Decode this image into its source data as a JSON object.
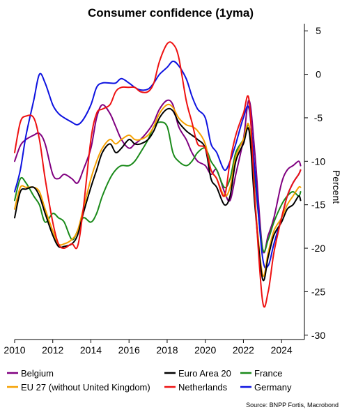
{
  "chart_data": {
    "type": "line",
    "title": "Consumer confidence (1yma)",
    "ylabel": "Percent",
    "source": "Source: BNPP Fortis, Macrobond",
    "xlim": [
      2010,
      2025.2
    ],
    "ylim": [
      -30.5,
      5.5
    ],
    "x_ticks": [
      2010,
      2012,
      2014,
      2016,
      2018,
      2020,
      2022,
      2024
    ],
    "x_tick_labels": [
      "2010",
      "2012",
      "2014",
      "2016",
      "2018",
      "2020",
      "2022",
      "2024"
    ],
    "y_ticks": [
      5,
      0,
      -5,
      -10,
      -15,
      -20,
      -25,
      -30
    ],
    "y_tick_labels": [
      "5",
      "0",
      "-5",
      "-10",
      "-15",
      "-20",
      "-25",
      "-30"
    ],
    "y_axis_side": "right",
    "grid": false,
    "legend_position": "bottom",
    "series": [
      {
        "name": "Belgium",
        "color": "#800080",
        "x": [
          2010,
          2010.3,
          2010.6,
          2011,
          2011.3,
          2011.6,
          2012,
          2012.3,
          2012.6,
          2013,
          2013.3,
          2013.6,
          2014,
          2014.3,
          2014.6,
          2015,
          2015.3,
          2015.6,
          2016,
          2016.3,
          2016.6,
          2017,
          2017.3,
          2017.6,
          2018,
          2018.3,
          2018.6,
          2019,
          2019.3,
          2019.6,
          2020,
          2020.3,
          2020.6,
          2021,
          2021.3,
          2021.6,
          2022,
          2022.3,
          2022.6,
          2023,
          2023.3,
          2023.6,
          2024,
          2024.3,
          2024.6,
          2024.9,
          2025
        ],
        "y": [
          -10,
          -8.2,
          -7.5,
          -7,
          -6.8,
          -8,
          -11.5,
          -12,
          -11.5,
          -12,
          -12.5,
          -11,
          -8.5,
          -5,
          -3.5,
          -4.5,
          -6,
          -7.5,
          -8.5,
          -8,
          -7.5,
          -6.5,
          -5.5,
          -4,
          -3,
          -3.5,
          -6,
          -7.5,
          -9,
          -10,
          -10.5,
          -11.5,
          -11,
          -13.5,
          -14.5,
          -11.5,
          -7.5,
          -3,
          -9,
          -20,
          -18.5,
          -16.5,
          -12.5,
          -11,
          -10.5,
          -10,
          -10.5
        ]
      },
      {
        "name": "Euro Area 20",
        "color": "#000000",
        "x": [
          2010,
          2010.3,
          2010.6,
          2011,
          2011.3,
          2011.6,
          2012,
          2012.3,
          2012.6,
          2013,
          2013.3,
          2013.6,
          2014,
          2014.3,
          2014.6,
          2015,
          2015.3,
          2015.6,
          2016,
          2016.3,
          2016.6,
          2017,
          2017.3,
          2017.6,
          2018,
          2018.3,
          2018.6,
          2019,
          2019.3,
          2019.6,
          2020,
          2020.3,
          2020.6,
          2021,
          2021.3,
          2021.6,
          2022,
          2022.3,
          2022.6,
          2023,
          2023.3,
          2023.6,
          2024,
          2024.3,
          2024.6,
          2024.9,
          2025
        ],
        "y": [
          -16.5,
          -13.5,
          -13.2,
          -13,
          -14,
          -16,
          -18.5,
          -19.8,
          -19.8,
          -19.5,
          -18.5,
          -16,
          -13,
          -11,
          -9,
          -8,
          -9,
          -8.5,
          -7.5,
          -8,
          -8,
          -7.5,
          -6.5,
          -5,
          -4,
          -4.2,
          -5.5,
          -6.5,
          -7,
          -7.5,
          -8.5,
          -12,
          -13,
          -15,
          -14,
          -10,
          -8,
          -6.5,
          -15,
          -23.5,
          -21,
          -18.5,
          -17,
          -15.5,
          -15,
          -14,
          -14.5
        ]
      },
      {
        "name": "France",
        "color": "#1a8a1a",
        "x": [
          2010,
          2010.3,
          2010.6,
          2011,
          2011.3,
          2011.6,
          2012,
          2012.3,
          2012.6,
          2013,
          2013.3,
          2013.6,
          2014,
          2014.3,
          2014.6,
          2015,
          2015.3,
          2015.6,
          2016,
          2016.3,
          2016.6,
          2017,
          2017.3,
          2017.6,
          2018,
          2018.3,
          2018.6,
          2019,
          2019.3,
          2019.6,
          2020,
          2020.3,
          2020.6,
          2021,
          2021.3,
          2021.6,
          2022,
          2022.3,
          2022.6,
          2023,
          2023.3,
          2023.6,
          2024,
          2024.3,
          2024.6,
          2024.9,
          2025
        ],
        "y": [
          -14.5,
          -12,
          -12.5,
          -14,
          -15,
          -17,
          -16,
          -16.5,
          -17,
          -19,
          -18,
          -16.5,
          -17,
          -16,
          -14,
          -12,
          -11,
          -10.5,
          -10.5,
          -10,
          -9,
          -7.5,
          -6,
          -5.5,
          -6,
          -9,
          -10,
          -10.5,
          -10,
          -9,
          -8.5,
          -10,
          -11,
          -13,
          -12,
          -9,
          -7.5,
          -6,
          -12,
          -20,
          -19,
          -17,
          -15,
          -14,
          -13.5,
          -14,
          -13.5
        ]
      },
      {
        "name": "EU 27 (without United Kingdom)",
        "color": "#f5a000",
        "x": [
          2010,
          2010.3,
          2010.6,
          2011,
          2011.3,
          2011.6,
          2012,
          2012.3,
          2012.6,
          2013,
          2013.3,
          2013.6,
          2014,
          2014.3,
          2014.6,
          2015,
          2015.3,
          2015.6,
          2016,
          2016.3,
          2016.6,
          2017,
          2017.3,
          2017.6,
          2018,
          2018.3,
          2018.6,
          2019,
          2019.3,
          2019.6,
          2020,
          2020.3,
          2020.6,
          2021,
          2021.3,
          2021.6,
          2022,
          2022.3,
          2022.6,
          2023,
          2023.3,
          2023.6,
          2024,
          2024.3,
          2024.6,
          2024.9,
          2025
        ],
        "y": [
          -15.5,
          -13,
          -13,
          -13,
          -13.5,
          -15.5,
          -18,
          -19.5,
          -19.5,
          -19,
          -18,
          -15.5,
          -12,
          -10,
          -8.5,
          -7.5,
          -8,
          -7.5,
          -7,
          -7.5,
          -7.5,
          -7,
          -6,
          -4.5,
          -3.5,
          -3.8,
          -5,
          -5.8,
          -6,
          -6.5,
          -8,
          -11,
          -12,
          -14,
          -13,
          -9.5,
          -7.5,
          -6,
          -14.5,
          -23,
          -20.5,
          -18,
          -16.5,
          -15,
          -14,
          -13,
          -13
        ]
      },
      {
        "name": "Netherlands",
        "color": "#ee1111",
        "x": [
          2010,
          2010.3,
          2010.6,
          2011,
          2011.3,
          2011.6,
          2012,
          2012.3,
          2012.6,
          2013,
          2013.3,
          2013.6,
          2014,
          2014.3,
          2014.6,
          2015,
          2015.3,
          2015.6,
          2016,
          2016.3,
          2016.6,
          2017,
          2017.3,
          2017.6,
          2018,
          2018.3,
          2018.6,
          2019,
          2019.3,
          2019.6,
          2020,
          2020.3,
          2020.6,
          2021,
          2021.3,
          2021.6,
          2022,
          2022.3,
          2022.6,
          2023,
          2023.3,
          2023.6,
          2024,
          2024.3,
          2024.6,
          2024.9,
          2025
        ],
        "y": [
          -9,
          -5.5,
          -4.8,
          -5,
          -7.5,
          -12,
          -17,
          -19.5,
          -20,
          -19.5,
          -19.8,
          -15.5,
          -7.5,
          -4.5,
          -4,
          -3.5,
          -2,
          -1.5,
          -1.5,
          -1.5,
          -2,
          -2,
          -1,
          1.5,
          3.5,
          3.5,
          2,
          -3,
          -5.5,
          -8,
          -8.5,
          -11,
          -12,
          -14,
          -10,
          -7,
          -4.5,
          -3,
          -14,
          -26,
          -25,
          -20.5,
          -16.5,
          -14,
          -12.5,
          -11.5,
          -11
        ]
      },
      {
        "name": "Germany",
        "color": "#0d12e0",
        "x": [
          2010,
          2010.3,
          2010.6,
          2011,
          2011.3,
          2011.6,
          2012,
          2012.3,
          2012.6,
          2013,
          2013.3,
          2013.6,
          2014,
          2014.3,
          2014.6,
          2015,
          2015.3,
          2015.6,
          2016,
          2016.3,
          2016.6,
          2017,
          2017.3,
          2017.6,
          2018,
          2018.3,
          2018.6,
          2019,
          2019.3,
          2019.6,
          2020,
          2020.3,
          2020.6,
          2021,
          2021.3,
          2021.6,
          2022,
          2022.3,
          2022.6,
          2023,
          2023.3,
          2023.6,
          2024,
          2024.3,
          2024.6,
          2024.9,
          2025
        ],
        "y": [
          -13.5,
          -11,
          -7,
          -3,
          0,
          -1,
          -3.5,
          -4.5,
          -5,
          -5.5,
          -5.8,
          -5.2,
          -3.5,
          -1.5,
          -1,
          -1,
          -1,
          -0.5,
          -1,
          -1.5,
          -1.8,
          -1.7,
          -1,
          0,
          0.8,
          1.5,
          1,
          -0.5,
          -2.5,
          -4,
          -5,
          -8,
          -9,
          -11,
          -10,
          -8,
          -5,
          -4,
          -11,
          -21,
          -22,
          -19.5,
          -16.5,
          -14,
          -12.5,
          -11.5,
          -11
        ]
      }
    ]
  }
}
